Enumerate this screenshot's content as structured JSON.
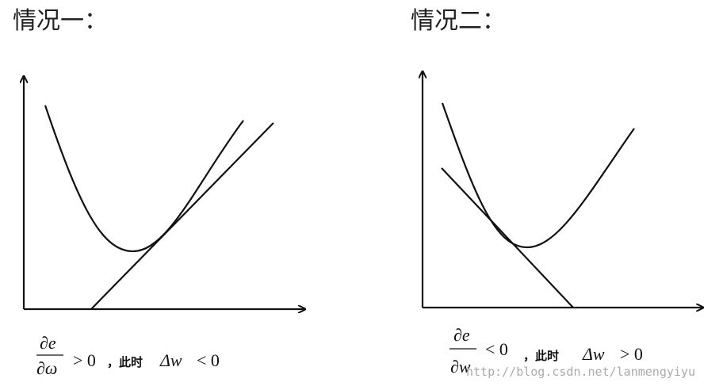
{
  "panels": [
    {
      "title": "情况一：",
      "numerator": "∂e",
      "denominator": "∂ω",
      "relation": "> 0",
      "conjunction": "，此时",
      "delta": "Δw",
      "delta_relation": "< 0"
    },
    {
      "title": "情况二：",
      "numerator": "∂e",
      "denominator": "∂w",
      "relation": "< 0",
      "conjunction": "，此时",
      "delta": "Δw",
      "delta_relation": "> 0"
    }
  ],
  "watermark": "http://blog.csdn.net/lanmengyiyu"
}
